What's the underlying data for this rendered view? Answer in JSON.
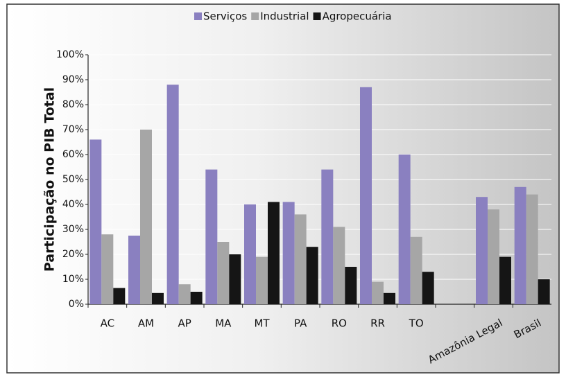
{
  "chart_data": {
    "type": "bar",
    "ylabel": "Participação no PIB Total",
    "categories": [
      "AC",
      "AM",
      "AP",
      "MA",
      "MT",
      "PA",
      "RO",
      "RR",
      "TO",
      null,
      "Amazônia Legal",
      "Brasil"
    ],
    "series": [
      {
        "name": "Serviços",
        "color": "#8a80c0",
        "values": [
          66,
          27.5,
          88,
          54,
          40,
          41,
          54,
          87,
          60,
          null,
          43,
          47
        ]
      },
      {
        "name": "Industrial",
        "color": "#a6a6a6",
        "values": [
          28,
          70,
          8,
          25,
          19,
          36,
          31,
          9,
          27,
          null,
          38,
          44
        ]
      },
      {
        "name": "Agropecuária",
        "color": "#151515",
        "values": [
          6.5,
          4.5,
          5,
          20,
          41,
          23,
          15,
          4.5,
          13,
          null,
          19,
          10
        ]
      }
    ],
    "ylim": [
      0,
      100
    ],
    "yticks": [
      {
        "value": 0,
        "label": "0%"
      },
      {
        "value": 10,
        "label": "10%"
      },
      {
        "value": 20,
        "label": "20%"
      },
      {
        "value": 30,
        "label": "30%"
      },
      {
        "value": 40,
        "label": "40%"
      },
      {
        "value": 50,
        "label": "50%"
      },
      {
        "value": 60,
        "label": "60%"
      },
      {
        "value": 70,
        "label": "70%"
      },
      {
        "value": 80,
        "label": "80%"
      },
      {
        "value": 90,
        "label": "90%"
      },
      {
        "value": 100,
        "label": "100%"
      }
    ],
    "grid": true,
    "legend": "top"
  }
}
